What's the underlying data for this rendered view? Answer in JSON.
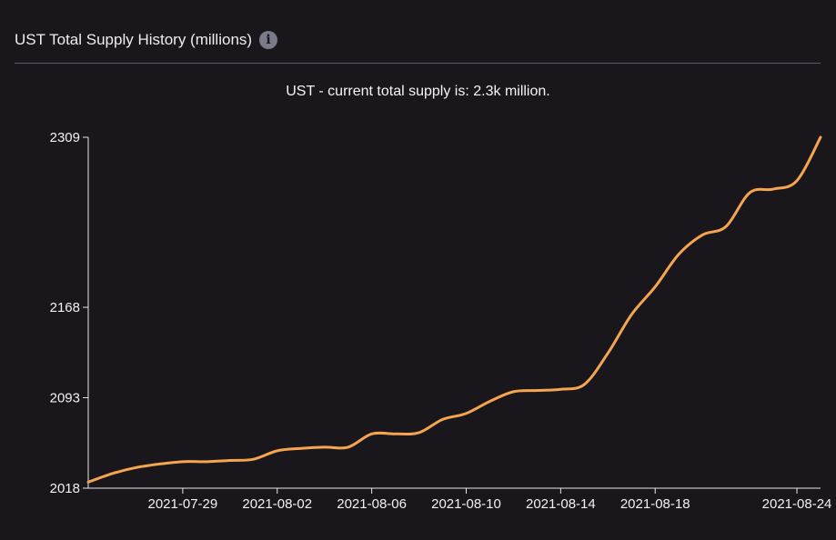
{
  "header": {
    "title": "UST Total Supply History (millions)",
    "info_icon": "info-icon"
  },
  "subtitle": "UST - current total supply is: 2.3k million.",
  "colors": {
    "background": "#19171b",
    "line": "#f5a44f",
    "axis": "#e8e8e8",
    "divider": "#5c5868"
  },
  "chart_data": {
    "type": "line",
    "title": "UST - current total supply is: 2.3k million.",
    "xlabel": "",
    "ylabel": "",
    "ylim": [
      2018,
      2309
    ],
    "xlim": [
      "2021-07-25",
      "2021-08-25"
    ],
    "yticks": [
      2018,
      2093,
      2168,
      2309
    ],
    "xticks": [
      "2021-07-29",
      "2021-08-02",
      "2021-08-06",
      "2021-08-10",
      "2021-08-14",
      "2021-08-18",
      "2021-08-24"
    ],
    "grid": false,
    "legend": "none",
    "series": [
      {
        "x": [
          "2021-07-25",
          "2021-07-26",
          "2021-07-27",
          "2021-07-28",
          "2021-07-29",
          "2021-07-30",
          "2021-07-31",
          "2021-08-01",
          "2021-08-02",
          "2021-08-03",
          "2021-08-04",
          "2021-08-05",
          "2021-08-06",
          "2021-08-07",
          "2021-08-08",
          "2021-08-09",
          "2021-08-10",
          "2021-08-11",
          "2021-08-12",
          "2021-08-13",
          "2021-08-14",
          "2021-08-15",
          "2021-08-16",
          "2021-08-17",
          "2021-08-18",
          "2021-08-19",
          "2021-08-20",
          "2021-08-21",
          "2021-08-22",
          "2021-08-23",
          "2021-08-24",
          "2021-08-25"
        ],
        "values": [
          2023,
          2030,
          2035,
          2038,
          2040,
          2040,
          2041,
          2042,
          2049,
          2051,
          2052,
          2052,
          2063,
          2063,
          2064,
          2075,
          2080,
          2090,
          2098,
          2099,
          2100,
          2104,
          2130,
          2162,
          2185,
          2212,
          2228,
          2235,
          2263,
          2266,
          2273,
          2309
        ]
      }
    ]
  }
}
